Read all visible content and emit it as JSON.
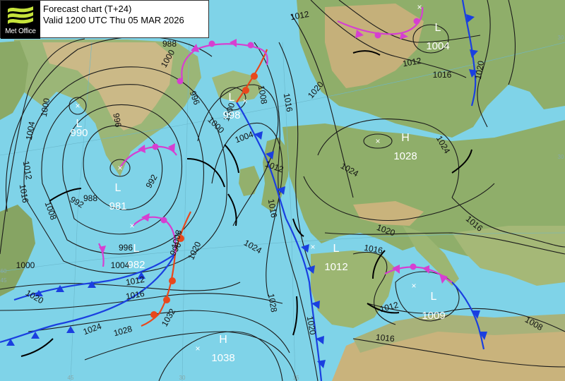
{
  "header": {
    "logo_text": "Met Office",
    "title": "Forecast chart (T+24)",
    "valid": "Valid 1200 UTC Thu 05 MAR 2026"
  },
  "colors": {
    "sea": "#7fd3e8",
    "land_low": "#8fae6a",
    "land_high": "#c9b37c",
    "isobar": "#1a1a1a",
    "cold_front": "#1a3fe0",
    "warm_front": "#e8481c",
    "occluded_front": "#d63fd1",
    "trough": "#000000"
  },
  "pressure_centres": [
    {
      "id": "L-990",
      "type": "L",
      "value": "990"
    },
    {
      "id": "L-981",
      "type": "L",
      "value": "981"
    },
    {
      "id": "L-982",
      "type": "L",
      "value": "982"
    },
    {
      "id": "L-998",
      "type": "L",
      "value": "998"
    },
    {
      "id": "L-1004",
      "type": "L",
      "value": "1004"
    },
    {
      "id": "H-1028",
      "type": "H",
      "value": "1028"
    },
    {
      "id": "L-1012",
      "type": "L",
      "value": "1012"
    },
    {
      "id": "L-1009",
      "type": "L",
      "value": "1009"
    },
    {
      "id": "H-1038",
      "type": "H",
      "value": "1038"
    }
  ],
  "isobar_labels": [
    "988",
    "1000",
    "1000",
    "1004",
    "996",
    "992",
    "988",
    "1008",
    "1012",
    "1016",
    "992",
    "996",
    "1004",
    "1000",
    "996",
    "1000",
    "1004",
    "1008",
    "1012",
    "1016",
    "1020",
    "1024",
    "1028",
    "1032",
    "996",
    "1008",
    "1012",
    "1016",
    "1020",
    "1024",
    "1028",
    "1020",
    "1016",
    "1012",
    "1020",
    "1024",
    "1020",
    "1016",
    "1012",
    "1016",
    "1020",
    "1024",
    "1016",
    "1012",
    "1016",
    "1008",
    "1000"
  ],
  "grid_labels": [
    "45",
    "30",
    "15",
    "30",
    "60",
    "45",
    "30"
  ],
  "fronts": {
    "cold": [
      "Scandinavia cold front",
      "Atlantic cold front",
      "Iberia cold front",
      "Mediterranean cold front",
      "Greenland cold front"
    ],
    "warm": [
      "Iceland warm front",
      "Atlantic warm front",
      "Biscay warm front"
    ],
    "occluded": [
      "Baltic occlusion",
      "Greenland occlusion",
      "Iceland occlusion",
      "Atlantic occlusion",
      "Mediterranean occlusion"
    ]
  }
}
